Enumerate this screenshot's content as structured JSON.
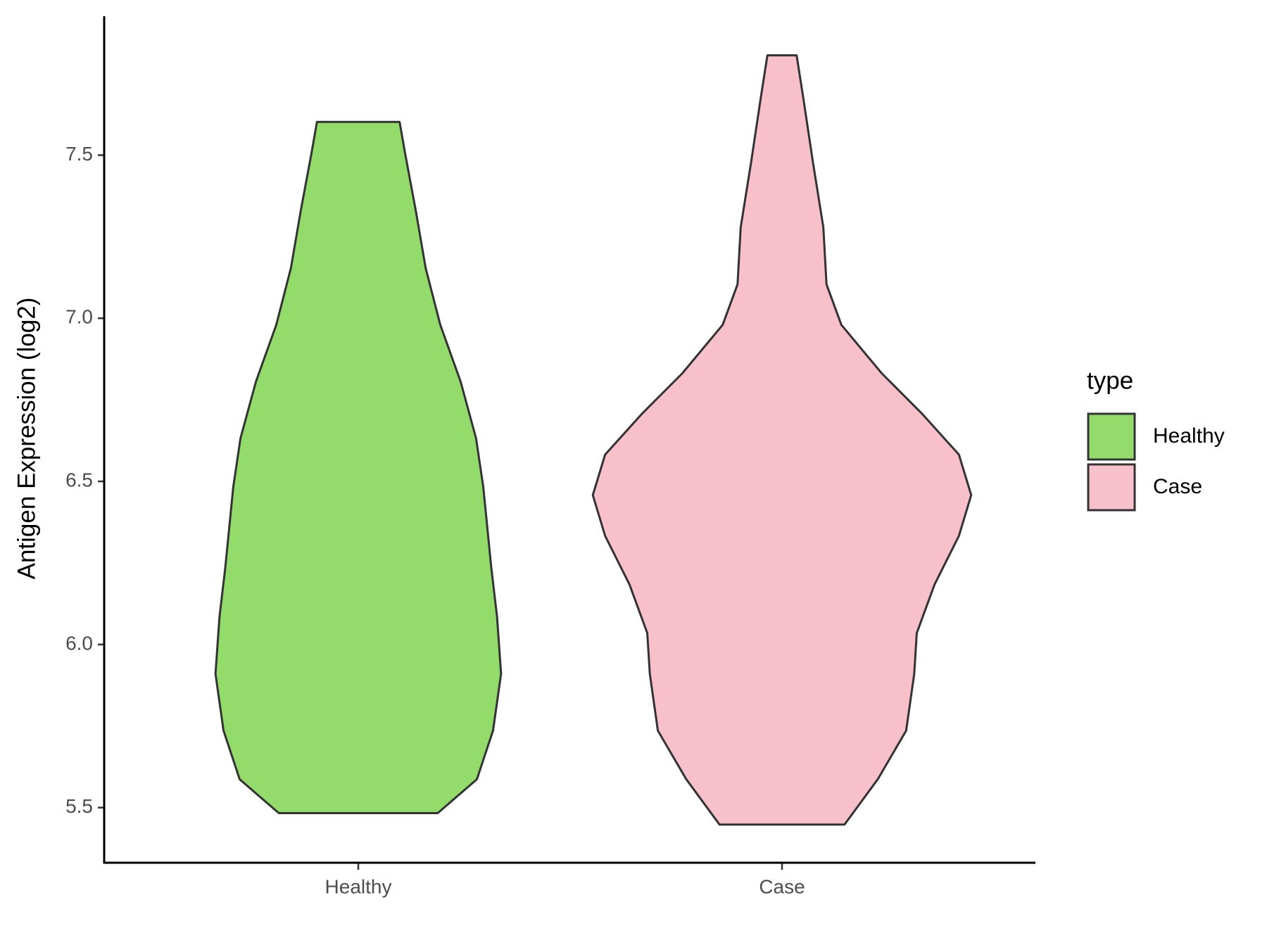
{
  "chart_data": {
    "type": "violin",
    "y_label": "Antigen Expression (log2)",
    "legend_title": "type",
    "categories": [
      "Healthy",
      "Case"
    ],
    "series": [
      {
        "name": "Healthy",
        "color": "#93db6b",
        "y": [
          5.483,
          5.587,
          5.736,
          5.91,
          6.085,
          6.234,
          6.483,
          6.632,
          6.806,
          6.98,
          7.154,
          7.328,
          7.502,
          7.602
        ],
        "width": [
          0.375,
          0.56,
          0.636,
          0.674,
          0.655,
          0.628,
          0.59,
          0.556,
          0.483,
          0.387,
          0.318,
          0.272,
          0.222,
          0.195
        ]
      },
      {
        "name": "Case",
        "color": "#f7c0cb",
        "y": [
          5.448,
          5.587,
          5.736,
          5.91,
          6.035,
          6.184,
          6.333,
          6.458,
          6.582,
          6.706,
          6.831,
          6.98,
          7.104,
          7.279,
          7.478,
          7.677,
          7.806
        ],
        "width": [
          0.295,
          0.452,
          0.586,
          0.624,
          0.636,
          0.72,
          0.835,
          0.893,
          0.835,
          0.663,
          0.471,
          0.28,
          0.21,
          0.195,
          0.146,
          0.1,
          0.069
        ]
      }
    ],
    "ylim": [
      5.331,
      7.926
    ],
    "yticks": [
      5.5,
      {
        "value": 6,
        "label": "6.0"
      },
      6.5,
      {
        "value": 7,
        "label": "7.0"
      },
      7.5
    ]
  }
}
